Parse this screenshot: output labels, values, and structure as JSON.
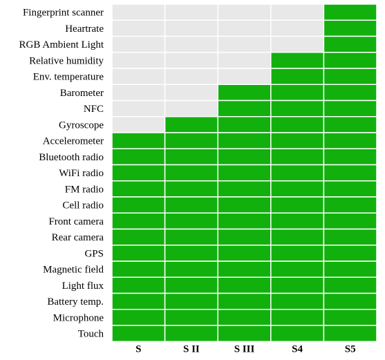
{
  "chart_data": {
    "type": "heatmap",
    "title": "",
    "xlabel": "",
    "ylabel": "",
    "columns": [
      "S",
      "S II",
      "S III",
      "S4",
      "S5"
    ],
    "rows": [
      "Fingerprint scanner",
      "Heartrate",
      "RGB Ambient Light",
      "Relative humidity",
      "Env. temperature",
      "Barometer",
      "NFC",
      "Gyroscope",
      "Accelerometer",
      "Bluetooth radio",
      "WiFi radio",
      "FM radio",
      "Cell radio",
      "Front camera",
      "Rear camera",
      "GPS",
      "Magnetic field",
      "Light flux",
      "Battery temp.",
      "Microphone",
      "Touch"
    ],
    "values": [
      [
        0,
        0,
        0,
        0,
        1
      ],
      [
        0,
        0,
        0,
        0,
        1
      ],
      [
        0,
        0,
        0,
        0,
        1
      ],
      [
        0,
        0,
        0,
        1,
        1
      ],
      [
        0,
        0,
        0,
        1,
        1
      ],
      [
        0,
        0,
        1,
        1,
        1
      ],
      [
        0,
        0,
        1,
        1,
        1
      ],
      [
        0,
        1,
        1,
        1,
        1
      ],
      [
        1,
        1,
        1,
        1,
        1
      ],
      [
        1,
        1,
        1,
        1,
        1
      ],
      [
        1,
        1,
        1,
        1,
        1
      ],
      [
        1,
        1,
        1,
        1,
        1
      ],
      [
        1,
        1,
        1,
        1,
        1
      ],
      [
        1,
        1,
        1,
        1,
        1
      ],
      [
        1,
        1,
        1,
        1,
        1
      ],
      [
        1,
        1,
        1,
        1,
        1
      ],
      [
        1,
        1,
        1,
        1,
        1
      ],
      [
        1,
        1,
        1,
        1,
        1
      ],
      [
        1,
        1,
        1,
        1,
        1
      ],
      [
        1,
        1,
        1,
        1,
        1
      ],
      [
        1,
        1,
        1,
        1,
        1
      ]
    ],
    "colors": {
      "present": "#12b00d",
      "absent": "#e8e8e8",
      "gridline": "#ffffff"
    }
  }
}
